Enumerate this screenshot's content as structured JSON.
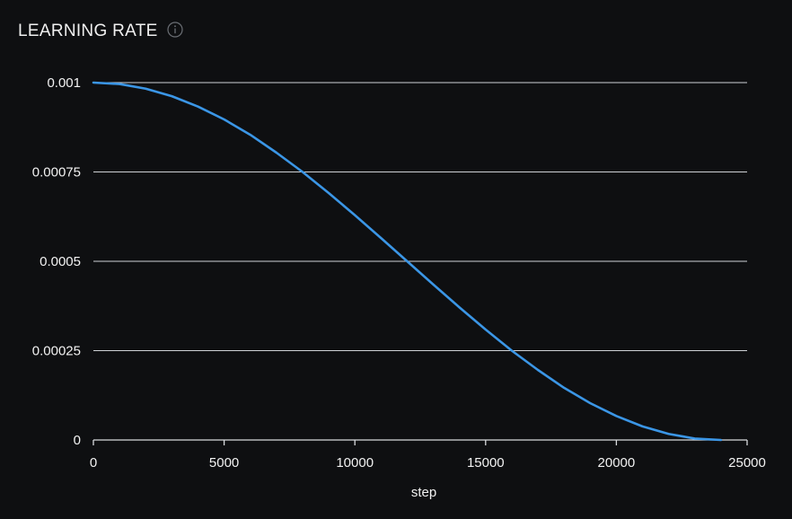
{
  "panel": {
    "title": "LEARNING RATE",
    "info_icon": "info-icon"
  },
  "colors": {
    "background": "#0e0f11",
    "grid": "#cfd2d6",
    "axis": "#d8dadd",
    "series": "#3b96e6",
    "text": "#f2f2f2",
    "icon": "#6b6f75"
  },
  "chart_data": {
    "type": "line",
    "title": "LEARNING RATE",
    "xlabel": "step",
    "ylabel": "",
    "xlim": [
      0,
      25000
    ],
    "ylim": [
      0,
      0.001
    ],
    "x_ticks": [
      0,
      5000,
      10000,
      15000,
      20000,
      25000
    ],
    "x_tick_labels": [
      "0",
      "5000",
      "10000",
      "15000",
      "20000",
      "25000"
    ],
    "y_ticks": [
      0,
      0.00025,
      0.0005,
      0.00075,
      0.001
    ],
    "y_tick_labels": [
      "0",
      "0.00025",
      "0.0005",
      "0.00075",
      "0.001"
    ],
    "grid": "horizontal",
    "series": [
      {
        "x": [
          0,
          1000,
          2000,
          3000,
          4000,
          5000,
          6000,
          7000,
          8000,
          9000,
          10000,
          11000,
          12000,
          13000,
          14000,
          15000,
          16000,
          17000,
          18000,
          19000,
          20000,
          21000,
          22000,
          23000,
          24000
        ],
        "y": [
          0.001,
          0.000996,
          0.000983,
          0.000962,
          0.000933,
          0.000897,
          0.000854,
          0.000804,
          0.00075,
          0.000691,
          0.000629,
          0.000565,
          0.0005,
          0.000435,
          0.000371,
          0.000309,
          0.00025,
          0.000196,
          0.000146,
          0.000103,
          6.7e-05,
          3.8e-05,
          1.7e-05,
          4e-06,
          0.0
        ]
      }
    ]
  }
}
